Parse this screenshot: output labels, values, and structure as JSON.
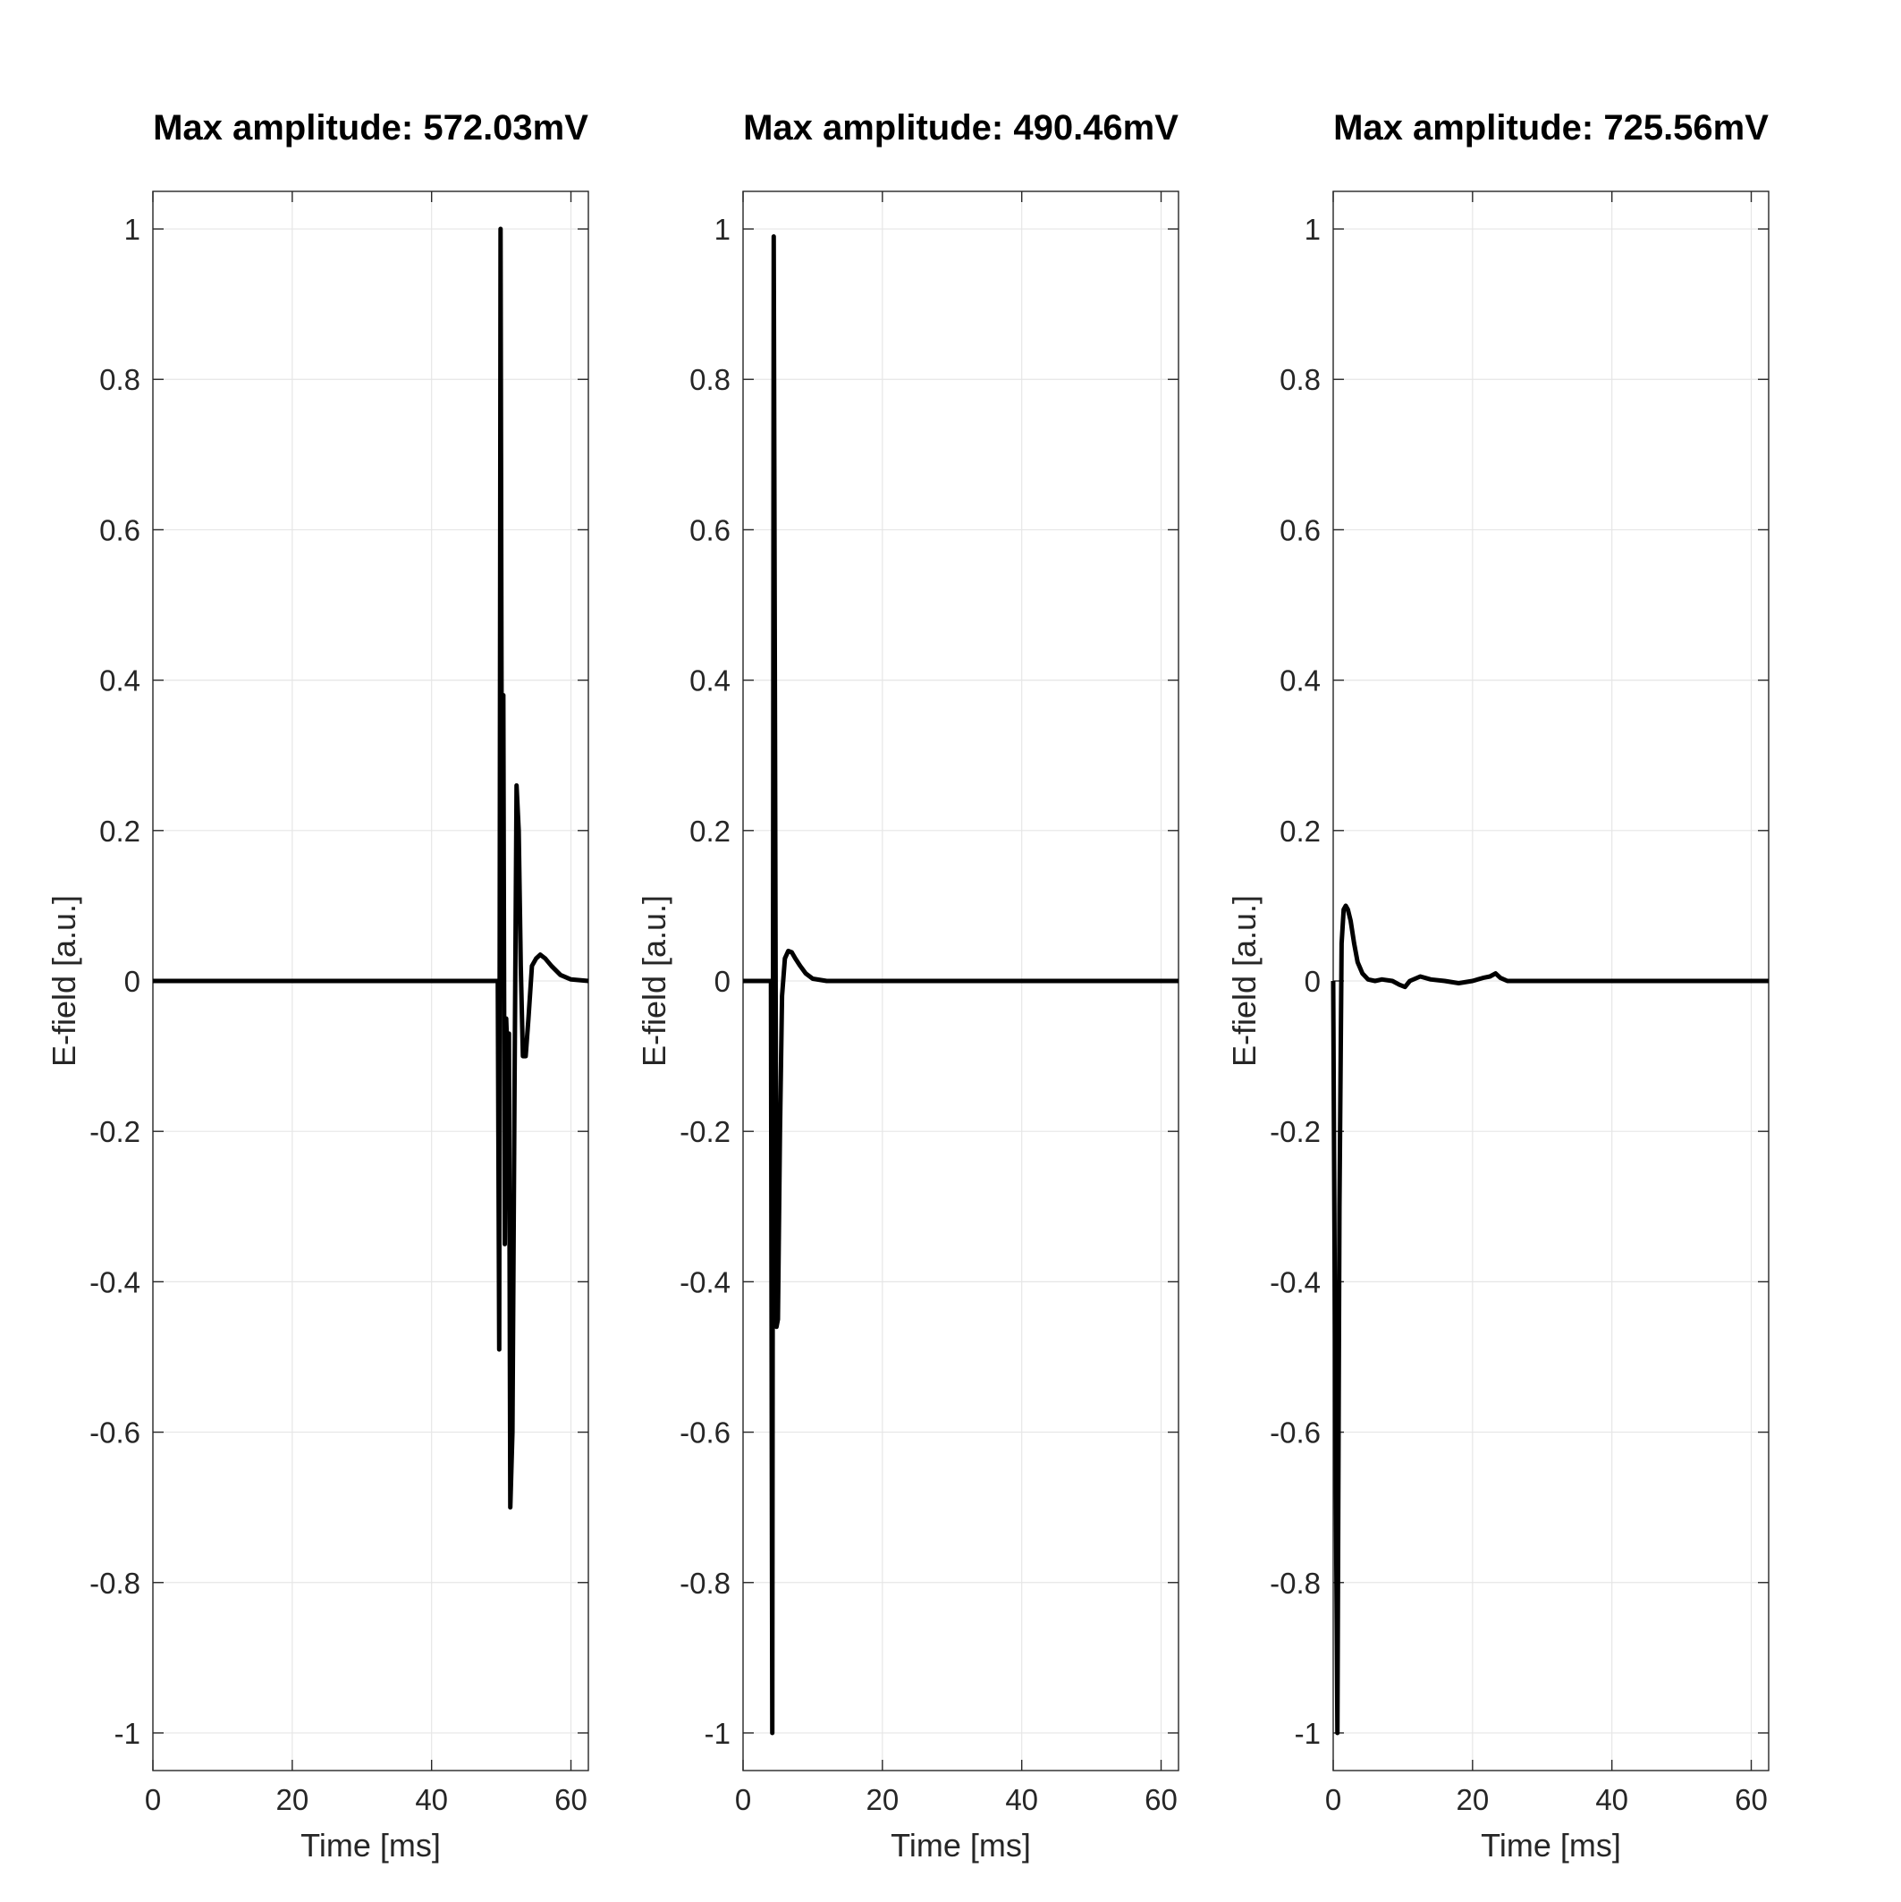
{
  "chart_data": [
    {
      "type": "line",
      "title": "Max amplitude: 572.03mV",
      "xlabel": "Time [ms]",
      "ylabel": "E-field [a.u.]",
      "xlim": [
        0,
        62.5
      ],
      "ylim": [
        -1.05,
        1.05
      ],
      "xticks": [
        "0",
        "20",
        "40",
        "60"
      ],
      "yticks": [
        "-1",
        "-0.8",
        "-0.6",
        "-0.4",
        "-0.2",
        "0",
        "0.2",
        "0.4",
        "0.6",
        "0.8",
        "1"
      ],
      "grid": true,
      "color": "#000000",
      "series": [
        {
          "x": [
            0,
            49.5,
            49.7,
            49.9,
            50.1,
            50.3,
            50.5,
            50.7,
            50.9,
            51.1,
            51.3,
            51.6,
            51.9,
            52.2,
            52.5,
            52.8,
            53.1,
            53.5,
            53.9,
            54.4,
            55.0,
            55.6,
            56.3,
            57.2,
            58.5,
            60.0,
            62.5
          ],
          "y": [
            0,
            0,
            -0.49,
            1.0,
            0.1,
            0.38,
            -0.35,
            -0.05,
            -0.1,
            -0.07,
            -0.7,
            -0.6,
            -0.15,
            0.26,
            0.2,
            0.02,
            -0.1,
            -0.1,
            -0.05,
            0.02,
            0.03,
            0.035,
            0.03,
            0.02,
            0.008,
            0.002,
            0
          ]
        }
      ]
    },
    {
      "type": "line",
      "title": "Max amplitude: 490.46mV",
      "xlabel": "Time [ms]",
      "ylabel": "E-field [a.u.]",
      "xlim": [
        0,
        62.5
      ],
      "ylim": [
        -1.05,
        1.05
      ],
      "xticks": [
        "0",
        "20",
        "40",
        "60"
      ],
      "yticks": [
        "-1",
        "-0.8",
        "-0.6",
        "-0.4",
        "-0.2",
        "0",
        "0.2",
        "0.4",
        "0.6",
        "0.8",
        "1"
      ],
      "grid": true,
      "color": "#000000",
      "series": [
        {
          "x": [
            0,
            4.0,
            4.2,
            4.4,
            4.6,
            4.8,
            5.0,
            5.3,
            5.6,
            6.0,
            6.5,
            7.0,
            7.5,
            8.2,
            9.0,
            10.0,
            12.0,
            62.5
          ],
          "y": [
            0,
            0,
            -1.0,
            0.99,
            0.3,
            -0.46,
            -0.45,
            -0.2,
            -0.02,
            0.03,
            0.04,
            0.038,
            0.03,
            0.02,
            0.01,
            0.003,
            0,
            0
          ]
        }
      ]
    },
    {
      "type": "line",
      "title": "Max amplitude: 725.56mV",
      "xlabel": "Time [ms]",
      "ylabel": "E-field [a.u.]",
      "xlim": [
        0,
        62.5
      ],
      "ylim": [
        -1.05,
        1.05
      ],
      "xticks": [
        "0",
        "20",
        "40",
        "60"
      ],
      "yticks": [
        "-1",
        "-0.8",
        "-0.6",
        "-0.4",
        "-0.2",
        "0",
        "0.2",
        "0.4",
        "0.6",
        "0.8",
        "1"
      ],
      "grid": true,
      "color": "#000000",
      "series": [
        {
          "x": [
            0,
            0.3,
            0.6,
            0.9,
            1.2,
            1.5,
            1.8,
            2.1,
            2.5,
            3.0,
            3.5,
            4.2,
            5.0,
            6.0,
            7.0,
            8.5,
            9.5,
            10.3,
            11.0,
            12.5,
            14.0,
            16.0,
            18.0,
            20.0,
            21.5,
            22.5,
            23.3,
            24.0,
            25.0,
            27.0,
            62.5
          ],
          "y": [
            0,
            -0.55,
            -1.0,
            -0.3,
            0.05,
            0.095,
            0.1,
            0.095,
            0.08,
            0.05,
            0.025,
            0.01,
            0.002,
            0.0,
            0.002,
            0.0,
            -0.005,
            -0.008,
            0.0,
            0.006,
            0.002,
            0.0,
            -0.003,
            0.0,
            0.004,
            0.006,
            0.01,
            0.004,
            0.0,
            0.0,
            0
          ]
        }
      ]
    }
  ]
}
